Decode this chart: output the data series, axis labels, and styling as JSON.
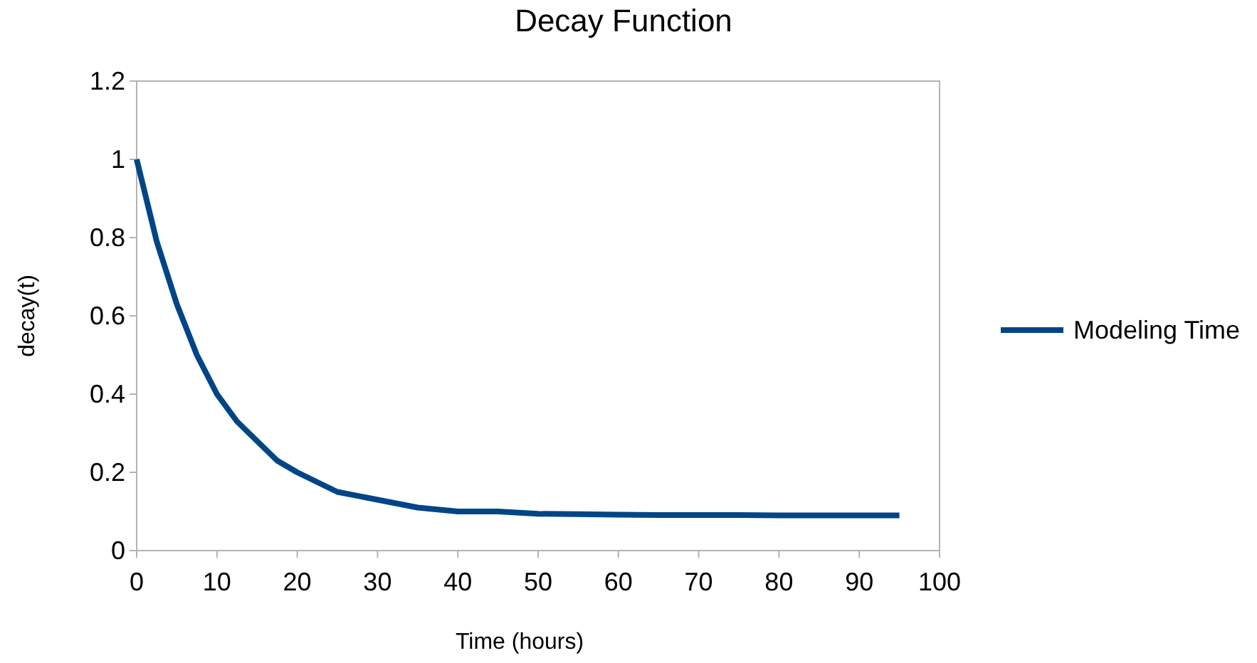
{
  "chart_data": {
    "type": "line",
    "title": "Decay Function",
    "xlabel": "Time (hours)",
    "ylabel": "decay(t)",
    "x": [
      0,
      2.5,
      5,
      7.5,
      10,
      12.5,
      15,
      17.5,
      20,
      25,
      30,
      35,
      40,
      45,
      50,
      55,
      60,
      65,
      70,
      75,
      80,
      85,
      90,
      95
    ],
    "series": [
      {
        "name": "Modeling Time",
        "color": "#004586",
        "values": [
          1,
          0.79,
          0.63,
          0.5,
          0.4,
          0.33,
          0.28,
          0.23,
          0.2,
          0.15,
          0.13,
          0.11,
          0.1,
          0.1,
          0.094,
          0.093,
          0.092,
          0.091,
          0.091,
          0.091,
          0.09,
          0.09,
          0.09,
          0.09
        ]
      }
    ],
    "xlim": [
      0,
      100
    ],
    "xticks": [
      0,
      10,
      20,
      30,
      40,
      50,
      60,
      70,
      80,
      90,
      100
    ],
    "ylim": [
      0,
      1.2
    ],
    "yticks": [
      0,
      0.2,
      0.4,
      0.6,
      0.8,
      1,
      1.2
    ],
    "grid": false,
    "legend": "right",
    "marker": "none",
    "line_style": "solid"
  }
}
